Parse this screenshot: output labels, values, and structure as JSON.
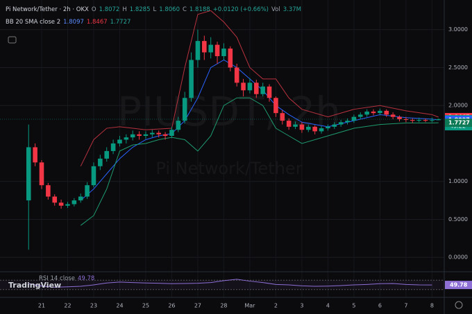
{
  "header": {
    "symbol": "Pi Network/Tether · 2h · OKX",
    "o_label": "O",
    "o": "1.8072",
    "h_label": "H",
    "h": "1.8285",
    "l_label": "L",
    "l": "1.8060",
    "c_label": "C",
    "c": "1.8188",
    "change": "+0.0120 (+0.66%)",
    "vol_label": "Vol",
    "vol": "3.37M"
  },
  "indicator_legend": {
    "name": "BB 20 SMA close 2"
  },
  "watermark": {
    "ticker": "PIUSDT, 2h",
    "name": "Pi Network/Tether"
  },
  "logo": "TradingView",
  "countdown": "43:22",
  "chart_data": {
    "type": "candlestick",
    "x": [
      20.5,
      20.75,
      21,
      21.25,
      21.5,
      21.75,
      22,
      22.25,
      22.5,
      22.75,
      23,
      23.25,
      23.5,
      23.75,
      24,
      24.25,
      24.5,
      24.75,
      25,
      25.25,
      25.5,
      25.75,
      26,
      26.25,
      26.5,
      26.75,
      27,
      27.25,
      27.5,
      27.75,
      28,
      28.25,
      28.5,
      28.75,
      29,
      29.25,
      29.5,
      29.75,
      30,
      30.25,
      30.5,
      30.75,
      31,
      31.25,
      31.5,
      31.75,
      32,
      32.25,
      32.5,
      32.75,
      33,
      33.25,
      33.5,
      33.75,
      34,
      34.25,
      34.5,
      34.75,
      35,
      35.25,
      35.5,
      35.75,
      36,
      36.25
    ],
    "open": [
      0.75,
      1.45,
      1.25,
      0.95,
      0.8,
      0.72,
      0.68,
      0.7,
      0.75,
      0.8,
      0.95,
      1.2,
      1.3,
      1.4,
      1.5,
      1.55,
      1.58,
      1.62,
      1.6,
      1.62,
      1.64,
      1.62,
      1.6,
      1.68,
      1.8,
      2.1,
      2.6,
      2.85,
      2.7,
      2.8,
      2.65,
      2.75,
      2.5,
      2.3,
      2.2,
      2.3,
      2.15,
      2.25,
      2.1,
      1.9,
      1.8,
      1.72,
      1.75,
      1.68,
      1.72,
      1.66,
      1.7,
      1.72,
      1.75,
      1.78,
      1.8,
      1.85,
      1.88,
      1.92,
      1.9,
      1.93,
      1.88,
      1.85,
      1.82,
      1.81,
      1.8,
      1.81,
      1.8,
      1.8072
    ],
    "high": [
      1.75,
      1.5,
      1.28,
      0.98,
      0.83,
      0.76,
      0.73,
      0.78,
      0.84,
      0.99,
      1.25,
      1.35,
      1.45,
      1.55,
      1.6,
      1.62,
      1.67,
      1.66,
      1.66,
      1.68,
      1.67,
      1.65,
      1.72,
      1.85,
      2.18,
      2.7,
      3.0,
      2.92,
      2.9,
      2.84,
      2.82,
      2.78,
      2.55,
      2.35,
      2.36,
      2.34,
      2.3,
      2.28,
      2.12,
      1.94,
      1.83,
      1.79,
      1.78,
      1.75,
      1.74,
      1.73,
      1.75,
      1.78,
      1.81,
      1.83,
      1.88,
      1.91,
      1.95,
      1.95,
      1.96,
      1.95,
      1.91,
      1.87,
      1.85,
      1.83,
      1.84,
      1.83,
      1.84,
      1.8285
    ],
    "low": [
      0.1,
      1.2,
      0.9,
      0.76,
      0.68,
      0.64,
      0.65,
      0.67,
      0.72,
      0.77,
      0.92,
      1.15,
      1.26,
      1.36,
      1.46,
      1.5,
      1.54,
      1.55,
      1.56,
      1.58,
      1.58,
      1.55,
      1.57,
      1.65,
      1.76,
      2.05,
      2.5,
      2.6,
      2.62,
      2.55,
      2.6,
      2.45,
      2.25,
      2.12,
      2.16,
      2.1,
      2.12,
      2.05,
      1.85,
      1.75,
      1.68,
      1.69,
      1.64,
      1.65,
      1.62,
      1.63,
      1.67,
      1.69,
      1.72,
      1.75,
      1.77,
      1.82,
      1.85,
      1.87,
      1.87,
      1.85,
      1.82,
      1.79,
      1.78,
      1.77,
      1.78,
      1.78,
      1.78,
      1.806
    ],
    "close": [
      1.45,
      1.25,
      0.95,
      0.8,
      0.72,
      0.68,
      0.7,
      0.75,
      0.8,
      0.95,
      1.2,
      1.3,
      1.4,
      1.5,
      1.55,
      1.58,
      1.62,
      1.6,
      1.62,
      1.64,
      1.62,
      1.6,
      1.68,
      1.8,
      2.1,
      2.6,
      2.85,
      2.7,
      2.8,
      2.65,
      2.75,
      2.5,
      2.3,
      2.2,
      2.3,
      2.15,
      2.25,
      2.1,
      1.9,
      1.8,
      1.72,
      1.75,
      1.68,
      1.72,
      1.66,
      1.7,
      1.72,
      1.75,
      1.78,
      1.8,
      1.85,
      1.88,
      1.92,
      1.9,
      1.93,
      1.88,
      1.85,
      1.82,
      1.81,
      1.8,
      1.81,
      1.8,
      1.8072,
      1.8188
    ],
    "up_color": "#089981",
    "down_color": "#f23645",
    "series": [
      {
        "color": "#b8323f",
        "x": [
          22.5,
          23,
          23.5,
          24,
          24.5,
          25,
          25.5,
          26,
          26.5,
          27,
          27.5,
          28,
          28.5,
          29,
          29.5,
          30,
          30.5,
          31,
          32,
          33,
          34,
          35,
          36,
          36.25
        ],
        "values": [
          1.2,
          1.55,
          1.7,
          1.72,
          1.7,
          1.68,
          1.69,
          1.7,
          2.5,
          3.2,
          3.25,
          3.1,
          2.9,
          2.5,
          2.35,
          2.35,
          2.1,
          1.95,
          1.85,
          1.95,
          2.0,
          1.93,
          1.88,
          1.8467
        ]
      },
      {
        "color": "#2962ff",
        "x": [
          22.5,
          23,
          23.5,
          24,
          24.5,
          25,
          25.5,
          26,
          26.5,
          27,
          27.5,
          28,
          28.5,
          29,
          29.5,
          30,
          30.5,
          31,
          32,
          33,
          34,
          35,
          36,
          36.25
        ],
        "values": [
          0.75,
          0.9,
          1.1,
          1.3,
          1.45,
          1.55,
          1.6,
          1.63,
          1.8,
          2.1,
          2.5,
          2.6,
          2.5,
          2.35,
          2.2,
          2.0,
          1.88,
          1.78,
          1.72,
          1.8,
          1.88,
          1.84,
          1.82,
          1.8097
        ]
      },
      {
        "color": "#1e9a6e",
        "x": [
          22.5,
          23,
          23.5,
          24,
          24.5,
          25,
          25.5,
          26,
          26.5,
          27,
          27.5,
          28,
          28.5,
          29,
          29.5,
          30,
          30.5,
          31,
          32,
          33,
          34,
          35,
          36,
          36.25
        ],
        "values": [
          0.42,
          0.55,
          0.9,
          1.4,
          1.48,
          1.5,
          1.55,
          1.58,
          1.55,
          1.4,
          1.6,
          2.0,
          2.1,
          2.1,
          2.0,
          1.7,
          1.6,
          1.5,
          1.6,
          1.7,
          1.75,
          1.77,
          1.77,
          1.7727
        ]
      }
    ],
    "xlim": [
      19.4,
      36.47
    ],
    "xticks": [
      21,
      22,
      23,
      24,
      25,
      26,
      27,
      28,
      {
        "value": 29,
        "label": "Mar"
      },
      {
        "value": 30,
        "label": "2"
      },
      {
        "value": 31,
        "label": "3"
      },
      {
        "value": 32,
        "label": "4"
      },
      {
        "value": 33,
        "label": "5"
      },
      {
        "value": 34,
        "label": "6"
      },
      {
        "value": 35,
        "label": "7"
      },
      {
        "value": 36,
        "label": "8"
      }
    ],
    "ylim": [
      -0.19,
      3.39
    ],
    "yticks": [
      {
        "value": 0,
        "label": "0.0000"
      },
      {
        "value": 0.5,
        "label": "0.5000"
      },
      {
        "value": 1,
        "label": "1.0000"
      },
      {
        "value": 2,
        "label": "2.0000"
      },
      {
        "value": 2.5,
        "label": "2.5000"
      },
      {
        "value": 3,
        "label": "3.0000"
      }
    ],
    "grid": true,
    "rsi": {
      "label": "RSI 14 close",
      "color": "#8e6fd6",
      "ylim": [
        0,
        100
      ],
      "levels": [
        70,
        30
      ],
      "x": [
        20.5,
        21,
        21.5,
        22,
        22.5,
        23,
        23.5,
        24,
        24.5,
        25,
        25.5,
        26,
        26.5,
        27,
        27.5,
        28,
        28.5,
        29,
        29.5,
        30,
        30.5,
        31,
        31.5,
        32,
        32.5,
        33,
        33.5,
        34,
        34.5,
        35,
        35.5,
        36
      ],
      "values": [
        55,
        45,
        40,
        42,
        44,
        50,
        58,
        62,
        60,
        58,
        57,
        55,
        56,
        57,
        60,
        68,
        74,
        66,
        60,
        52,
        50,
        46,
        44,
        45,
        47,
        50,
        52,
        55,
        56,
        52,
        50,
        49.78
      ]
    }
  }
}
